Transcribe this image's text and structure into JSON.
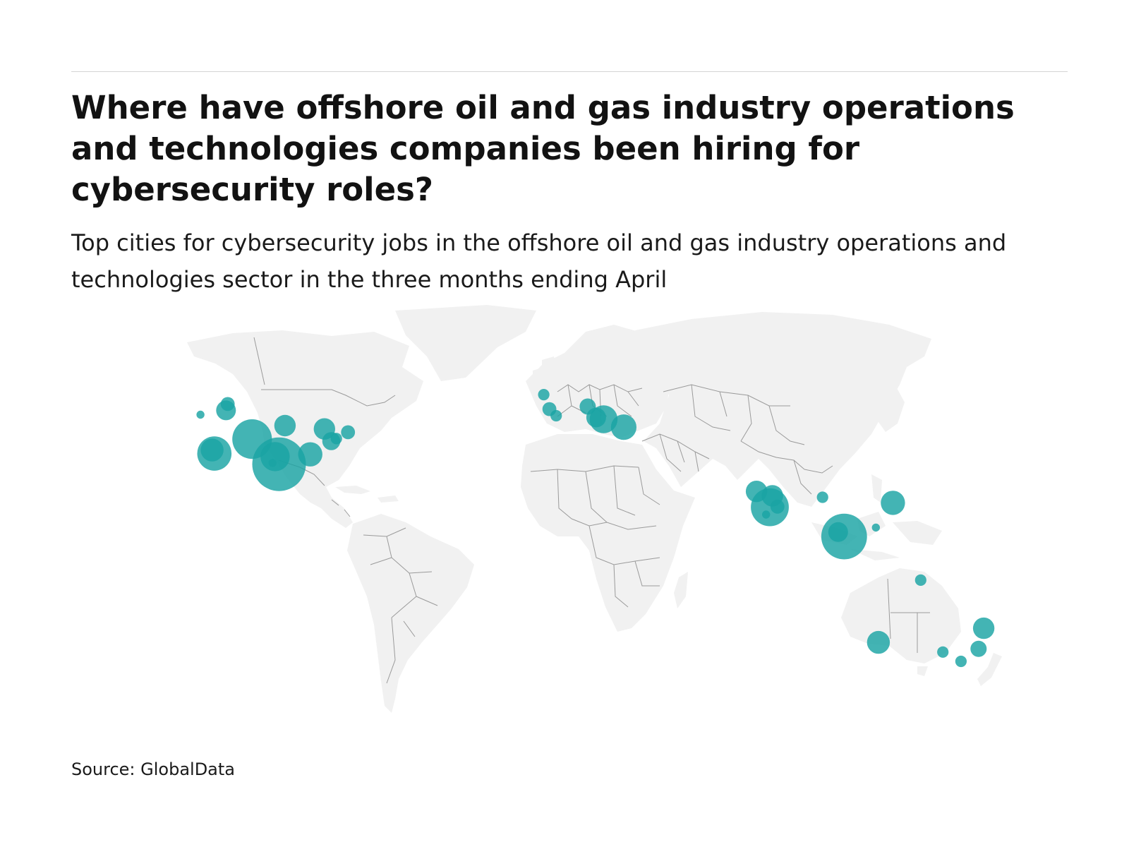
{
  "header": {
    "title": "Where have offshore oil and gas industry operations and technologies companies been hiring for cybersecurity roles?",
    "subtitle": "Top cities for cybersecurity jobs in the offshore oil and gas industry operations and technologies sector in the three months ending April"
  },
  "footer": {
    "source": "Source: GlobalData"
  },
  "map": {
    "projection": "world",
    "land_color": "#f1f1f1",
    "border_color": "#9a9a9a",
    "bubble_color": "#1aa3a3",
    "bubble_overlap_color": "#0c4a4a",
    "bubbles": [
      {
        "lon": -113.5,
        "lat": 53.5,
        "size": 3
      },
      {
        "lon": -114.1,
        "lat": 51.0,
        "size": 6
      },
      {
        "lon": -123.1,
        "lat": 49.3,
        "size": 1
      },
      {
        "lon": -93.3,
        "lat": 45.0,
        "size": 7
      },
      {
        "lon": -79.4,
        "lat": 43.7,
        "size": 7
      },
      {
        "lon": -71.1,
        "lat": 42.4,
        "size": 3
      },
      {
        "lon": -75.2,
        "lat": 39.9,
        "size": 2
      },
      {
        "lon": -104.9,
        "lat": 39.7,
        "size": 24
      },
      {
        "lon": -96.8,
        "lat": 32.8,
        "size": 13
      },
      {
        "lon": -84.4,
        "lat": 33.7,
        "size": 9
      },
      {
        "lon": -77.0,
        "lat": 38.9,
        "size": 5
      },
      {
        "lon": -118.2,
        "lat": 34.0,
        "size": 18
      },
      {
        "lon": -119.0,
        "lat": 35.4,
        "size": 8
      },
      {
        "lon": -95.4,
        "lat": 29.8,
        "size": 44
      },
      {
        "lon": -97.7,
        "lat": 30.3,
        "size": 1
      },
      {
        "lon": -2.1,
        "lat": 57.2,
        "size": 2
      },
      {
        "lon": -0.1,
        "lat": 51.5,
        "size": 3
      },
      {
        "lon": 2.3,
        "lat": 48.9,
        "size": 2
      },
      {
        "lon": 13.4,
        "lat": 52.5,
        "size": 4
      },
      {
        "lon": 16.4,
        "lat": 48.2,
        "size": 6
      },
      {
        "lon": 19.0,
        "lat": 47.5,
        "size": 12
      },
      {
        "lon": 26.1,
        "lat": 44.4,
        "size": 10
      },
      {
        "lon": 96.2,
        "lat": 16.8,
        "size": 2
      },
      {
        "lon": 72.9,
        "lat": 19.1,
        "size": 7
      },
      {
        "lon": 78.5,
        "lat": 17.4,
        "size": 7
      },
      {
        "lon": 80.3,
        "lat": 13.1,
        "size": 3
      },
      {
        "lon": 77.6,
        "lat": 12.9,
        "size": 22
      },
      {
        "lon": 76.3,
        "lat": 10.0,
        "size": 1
      },
      {
        "lon": 121.0,
        "lat": 14.6,
        "size": 9
      },
      {
        "lon": 103.8,
        "lat": 1.35,
        "size": 32
      },
      {
        "lon": 101.7,
        "lat": 3.1,
        "size": 6
      },
      {
        "lon": 115.0,
        "lat": 4.9,
        "size": 1
      },
      {
        "lon": 130.8,
        "lat": -12.5,
        "size": 2
      },
      {
        "lon": 153.0,
        "lat": -27.5,
        "size": 7
      },
      {
        "lon": 115.9,
        "lat": -31.9,
        "size": 8
      },
      {
        "lon": 138.6,
        "lat": -34.9,
        "size": 2
      },
      {
        "lon": 151.2,
        "lat": -33.9,
        "size": 4
      },
      {
        "lon": 145.0,
        "lat": -37.8,
        "size": 2
      }
    ]
  }
}
